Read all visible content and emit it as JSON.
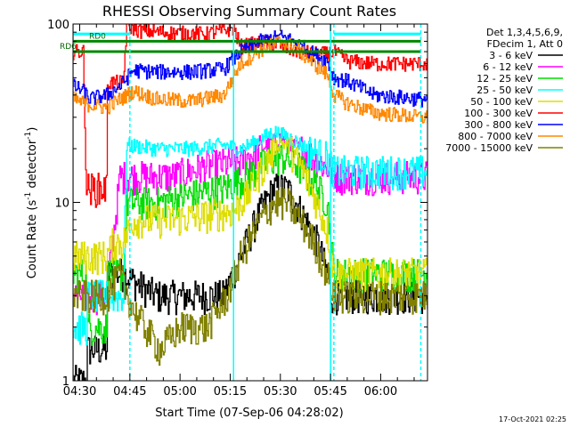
{
  "chart_data": {
    "type": "line",
    "title": "RHESSI Observing Summary Count Rates",
    "xlabel": "Start Time (07-Sep-06 04:28:02)",
    "ylabel_main": "Count Rate (s",
    "ylabel_sup1": "-1",
    "ylabel_mid": " detector",
    "ylabel_sup2": "-1",
    "ylabel_end": ")",
    "y_scale": "log",
    "ylim": [
      1,
      100
    ],
    "xlim_min": [
      0,
      106
    ],
    "x_ticks": [
      {
        "t": 2,
        "label": "04:30"
      },
      {
        "t": 17,
        "label": "04:45"
      },
      {
        "t": 32,
        "label": "05:00"
      },
      {
        "t": 47,
        "label": "05:15"
      },
      {
        "t": 62,
        "label": "05:30"
      },
      {
        "t": 77,
        "label": "05:45"
      },
      {
        "t": 92,
        "label": "06:00"
      }
    ],
    "y_ticks": [
      {
        "v": 1,
        "label": "1"
      },
      {
        "v": 10,
        "label": "10"
      },
      {
        "v": 100,
        "label": "100"
      }
    ],
    "info_lines": [
      "Det 1,3,4,5,6,9,",
      "FDecim 1, Att 0"
    ],
    "timestamp": "17-Oct-2021 02:25",
    "rd_labels": [
      {
        "text": "RD0",
        "level": 80,
        "t_from": 0,
        "t_to": 104
      },
      {
        "text": "RD6",
        "level": 70,
        "t_from": 0,
        "t_to": 104
      }
    ],
    "series": [
      {
        "name": "3 - 6 keV",
        "color": "#000000",
        "points": [
          [
            0,
            1
          ],
          [
            4,
            1
          ],
          [
            4,
            1.5
          ],
          [
            10,
            1.5
          ],
          [
            10,
            4
          ],
          [
            15,
            4
          ],
          [
            19,
            3.5
          ],
          [
            25,
            3
          ],
          [
            35,
            3
          ],
          [
            45,
            3
          ],
          [
            50,
            5
          ],
          [
            56,
            9
          ],
          [
            60,
            12
          ],
          [
            64,
            12
          ],
          [
            68,
            9
          ],
          [
            73,
            6
          ],
          [
            76,
            4
          ],
          [
            77,
            3
          ],
          [
            84,
            3
          ],
          [
            90,
            3
          ],
          [
            98,
            3
          ],
          [
            104,
            3
          ]
        ]
      },
      {
        "name": "6 - 12 keV",
        "color": "#ff00ff",
        "points": [
          [
            0,
            3
          ],
          [
            10,
            3
          ],
          [
            14,
            14
          ],
          [
            20,
            14
          ],
          [
            30,
            14
          ],
          [
            40,
            16
          ],
          [
            50,
            17
          ],
          [
            58,
            21
          ],
          [
            62,
            23
          ],
          [
            66,
            21
          ],
          [
            72,
            18
          ],
          [
            77,
            15
          ],
          [
            80,
            14
          ],
          [
            90,
            14
          ],
          [
            104,
            14
          ]
        ]
      },
      {
        "name": "12 - 25 keV",
        "color": "#00dd00",
        "points": [
          [
            0,
            4
          ],
          [
            4,
            4
          ],
          [
            4,
            2
          ],
          [
            10,
            2
          ],
          [
            10,
            4
          ],
          [
            15,
            4
          ],
          [
            16,
            10
          ],
          [
            25,
            10
          ],
          [
            35,
            11
          ],
          [
            45,
            12
          ],
          [
            52,
            14
          ],
          [
            58,
            17
          ],
          [
            62,
            18
          ],
          [
            66,
            17
          ],
          [
            72,
            13
          ],
          [
            76,
            10
          ],
          [
            78,
            4
          ],
          [
            90,
            4
          ],
          [
            104,
            4
          ]
        ]
      },
      {
        "name": "25 - 50 keV",
        "color": "#00ffff",
        "points": [
          [
            0,
            2
          ],
          [
            4,
            2
          ],
          [
            4,
            3
          ],
          [
            10,
            3
          ],
          [
            15,
            3
          ],
          [
            16,
            21
          ],
          [
            25,
            20
          ],
          [
            35,
            20
          ],
          [
            45,
            21
          ],
          [
            50,
            20
          ],
          [
            55,
            22
          ],
          [
            60,
            25
          ],
          [
            65,
            23
          ],
          [
            70,
            20
          ],
          [
            76,
            18
          ],
          [
            78,
            15
          ],
          [
            90,
            15
          ],
          [
            104,
            15
          ]
        ]
      },
      {
        "name": "50 - 100 keV",
        "color": "#dddd00",
        "points": [
          [
            0,
            5
          ],
          [
            4,
            5
          ],
          [
            10,
            5
          ],
          [
            12,
            6
          ],
          [
            15,
            6
          ],
          [
            18,
            8
          ],
          [
            28,
            8
          ],
          [
            40,
            8.5
          ],
          [
            48,
            9
          ],
          [
            52,
            11
          ],
          [
            56,
            15
          ],
          [
            60,
            20
          ],
          [
            62,
            22
          ],
          [
            64,
            21
          ],
          [
            68,
            16
          ],
          [
            72,
            11
          ],
          [
            76,
            7
          ],
          [
            78,
            4
          ],
          [
            90,
            4
          ],
          [
            104,
            4
          ]
        ]
      },
      {
        "name": "100 - 300 keV",
        "color": "#ff0000",
        "points": [
          [
            0,
            70
          ],
          [
            3,
            70
          ],
          [
            4,
            12
          ],
          [
            10,
            12
          ],
          [
            10,
            47
          ],
          [
            15,
            47
          ],
          [
            16,
            98
          ],
          [
            20,
            92
          ],
          [
            30,
            89
          ],
          [
            40,
            88
          ],
          [
            48,
            95
          ],
          [
            50,
            75
          ],
          [
            55,
            78
          ],
          [
            60,
            78
          ],
          [
            65,
            72
          ],
          [
            72,
            68
          ],
          [
            76,
            68
          ],
          [
            78,
            70
          ],
          [
            82,
            62
          ],
          [
            90,
            60
          ],
          [
            104,
            60
          ]
        ]
      },
      {
        "name": "300 - 800 keV",
        "color": "#0000ff",
        "points": [
          [
            0,
            45
          ],
          [
            3,
            42
          ],
          [
            5,
            38
          ],
          [
            10,
            40
          ],
          [
            14,
            45
          ],
          [
            18,
            55
          ],
          [
            25,
            54
          ],
          [
            35,
            54
          ],
          [
            45,
            56
          ],
          [
            50,
            70
          ],
          [
            56,
            80
          ],
          [
            62,
            85
          ],
          [
            66,
            80
          ],
          [
            72,
            68
          ],
          [
            76,
            62
          ],
          [
            78,
            50
          ],
          [
            82,
            48
          ],
          [
            90,
            40
          ],
          [
            104,
            38
          ]
        ]
      },
      {
        "name": "800 - 7000 keV",
        "color": "#ff8800",
        "points": [
          [
            0,
            38
          ],
          [
            3,
            36
          ],
          [
            10,
            34
          ],
          [
            14,
            38
          ],
          [
            18,
            42
          ],
          [
            25,
            38
          ],
          [
            35,
            37
          ],
          [
            45,
            40
          ],
          [
            50,
            60
          ],
          [
            56,
            72
          ],
          [
            62,
            80
          ],
          [
            66,
            75
          ],
          [
            72,
            60
          ],
          [
            76,
            52
          ],
          [
            78,
            40
          ],
          [
            82,
            36
          ],
          [
            90,
            32
          ],
          [
            104,
            30
          ]
        ]
      },
      {
        "name": "7000 - 15000 keV",
        "color": "#808000",
        "points": [
          [
            0,
            3
          ],
          [
            10,
            3
          ],
          [
            14,
            4
          ],
          [
            18,
            2.5
          ],
          [
            26,
            1.5
          ],
          [
            32,
            2
          ],
          [
            40,
            2
          ],
          [
            46,
            3
          ],
          [
            50,
            5
          ],
          [
            56,
            8
          ],
          [
            60,
            10
          ],
          [
            64,
            10
          ],
          [
            68,
            8
          ],
          [
            72,
            6
          ],
          [
            76,
            4
          ],
          [
            78,
            3
          ],
          [
            84,
            3
          ],
          [
            90,
            3
          ],
          [
            104,
            3
          ]
        ]
      }
    ],
    "gap_markers": [
      {
        "t": 0,
        "style": "solid"
      },
      {
        "t": 17,
        "style": "dashed"
      },
      {
        "t": 48,
        "style": "solid"
      },
      {
        "t": 77,
        "style": "solid"
      },
      {
        "t": 78,
        "style": "dashed"
      },
      {
        "t": 104,
        "style": "dashed"
      }
    ],
    "attenuator_bars": [
      {
        "t_from": 0,
        "t_to": 17,
        "level": 88
      },
      {
        "t_from": 78,
        "t_to": 104,
        "level": 88
      }
    ]
  }
}
